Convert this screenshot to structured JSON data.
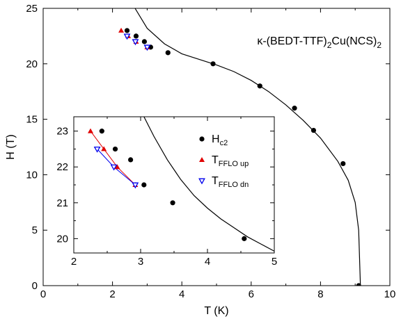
{
  "chart_data": [
    {
      "type": "scatter",
      "title": "κ-(BEDT-TTF)₂Cu(NCS)₂",
      "compound_label": {
        "prefix": "κ-(BEDT-TTF)",
        "sub1": "2",
        "mid": "Cu(NCS)",
        "sub2": "2"
      },
      "xlabel": "T (K)",
      "ylabel": "H (T)",
      "xlim": [
        0,
        10
      ],
      "ylim": [
        0,
        25
      ],
      "x_ticks": [
        "0",
        "2",
        "4",
        "6",
        "8",
        "10"
      ],
      "y_ticks": [
        "0",
        "5",
        "10",
        "15",
        "20",
        "25"
      ],
      "grid": false,
      "series": [
        {
          "name": "H_c2",
          "marker": "filled-circle",
          "color": "#000000",
          "points": [
            [
              2.42,
              23.0
            ],
            [
              2.68,
              22.5
            ],
            [
              2.92,
              22.0
            ],
            [
              3.1,
              21.5
            ],
            [
              3.6,
              21.0
            ],
            [
              4.9,
              20.0
            ],
            [
              6.25,
              18.0
            ],
            [
              7.25,
              16.0
            ],
            [
              7.8,
              14.0
            ],
            [
              8.65,
              11.0
            ],
            [
              9.1,
              0.0
            ]
          ]
        },
        {
          "name": "T_FFLO up",
          "marker": "filled-triangle-up",
          "color": "#e00000",
          "points": [
            [
              2.25,
              23.0
            ],
            [
              2.45,
              22.5
            ],
            [
              2.68,
              22.0
            ],
            [
              3.0,
              21.5
            ]
          ]
        },
        {
          "name": "T_FFLO dn",
          "marker": "open-triangle-down",
          "color": "#0000ee",
          "points": [
            [
              2.42,
              22.5
            ],
            [
              2.66,
              22.0
            ],
            [
              3.0,
              21.5
            ]
          ]
        },
        {
          "name": "fit",
          "type": "line",
          "color": "#000000",
          "points": [
            [
              2.65,
              25.0
            ],
            [
              3.0,
              23.2
            ],
            [
              3.5,
              21.8
            ],
            [
              4.0,
              20.9
            ],
            [
              4.5,
              20.4
            ],
            [
              5.0,
              19.9
            ],
            [
              5.5,
              19.3
            ],
            [
              6.0,
              18.5
            ],
            [
              6.5,
              17.5
            ],
            [
              7.0,
              16.3
            ],
            [
              7.5,
              14.9
            ],
            [
              8.0,
              13.3
            ],
            [
              8.5,
              11.2
            ],
            [
              8.8,
              9.5
            ],
            [
              9.0,
              7.5
            ],
            [
              9.1,
              5.0
            ],
            [
              9.15,
              0.0
            ]
          ]
        }
      ]
    },
    {
      "type": "scatter",
      "title": "",
      "xlabel": "",
      "ylabel": "",
      "xlim": [
        2,
        5
      ],
      "ylim": [
        19.6,
        23.4
      ],
      "x_ticks": [
        "2",
        "3",
        "4",
        "5"
      ],
      "y_ticks": [
        "20",
        "21",
        "22",
        "23"
      ],
      "grid": false,
      "legend": {
        "placement": "top-right",
        "entries": [
          {
            "main": "H",
            "sub": "c2",
            "marker": "filled-circle",
            "color": "#000000"
          },
          {
            "main": "T",
            "sub": "FFLO up",
            "marker": "filled-triangle-up",
            "color": "#e00000"
          },
          {
            "main": "T",
            "sub": "FFLO dn",
            "marker": "open-triangle-down",
            "color": "#0000ee"
          }
        ]
      },
      "series": [
        {
          "name": "H_c2",
          "marker": "filled-circle",
          "color": "#000000",
          "points": [
            [
              2.42,
              23.0
            ],
            [
              2.62,
              22.5
            ],
            [
              2.85,
              22.2
            ],
            [
              3.05,
              21.5
            ],
            [
              3.48,
              21.0
            ],
            [
              4.55,
              20.0
            ]
          ]
        },
        {
          "name": "T_FFLO up",
          "marker": "filled-triangle-up",
          "color": "#e00000",
          "points": [
            [
              2.25,
              23.0
            ],
            [
              2.45,
              22.5
            ],
            [
              2.65,
              22.0
            ],
            [
              2.92,
              21.5
            ]
          ]
        },
        {
          "name": "T_FFLO dn",
          "marker": "open-triangle-down",
          "color": "#0000ee",
          "points": [
            [
              2.35,
              22.5
            ],
            [
              2.6,
              22.0
            ],
            [
              2.92,
              21.5
            ]
          ]
        },
        {
          "name": "fit",
          "type": "line",
          "color": "#000000",
          "points": [
            [
              3.05,
              23.4
            ],
            [
              3.2,
              22.85
            ],
            [
              3.4,
              22.2
            ],
            [
              3.6,
              21.65
            ],
            [
              3.8,
              21.2
            ],
            [
              4.0,
              20.85
            ],
            [
              4.2,
              20.55
            ],
            [
              4.4,
              20.3
            ],
            [
              4.6,
              20.05
            ],
            [
              4.8,
              19.85
            ],
            [
              5.0,
              19.65
            ]
          ]
        }
      ]
    }
  ]
}
